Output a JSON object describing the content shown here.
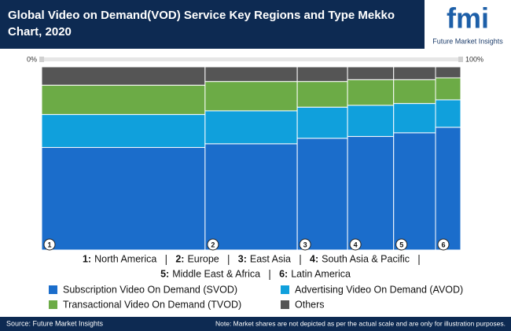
{
  "header": {
    "title": "Global Video on Demand(VOD) Service Key Regions and Type Mekko Chart, 2020",
    "logo": {
      "mark": "fmi",
      "text": "Future Market Insights"
    }
  },
  "chart_data": {
    "type": "mekko",
    "categories": [
      "North America",
      "Europe",
      "East Asia",
      "South Asia & Pacific",
      "Middle East & Africa",
      "Latin America"
    ],
    "category_ids": [
      "1",
      "2",
      "3",
      "4",
      "5",
      "6"
    ],
    "category_keys": [
      "1:",
      "2:",
      "3:",
      "4:",
      "5:",
      "6:"
    ],
    "widths": [
      39,
      22,
      12,
      11,
      10,
      6
    ],
    "xlim": [
      0,
      100
    ],
    "xticks": [
      {
        "value": 0,
        "label": "0%"
      },
      {
        "value": 100,
        "label": "100%"
      }
    ],
    "ylim": [
      0,
      100
    ],
    "series": [
      {
        "name": "Subscription Video On Demand (SVOD)",
        "color": "#1b6dcb",
        "values": [
          56,
          58,
          61,
          62,
          64,
          67
        ]
      },
      {
        "name": "Advertising Video On Demand (AVOD)",
        "color": "#10a0dc",
        "values": [
          18,
          18,
          17,
          17,
          16,
          15
        ]
      },
      {
        "name": "Transactional Video On Demand (TVOD)",
        "color": "#6cab46",
        "values": [
          16,
          16,
          14,
          14,
          13,
          12
        ]
      },
      {
        "name": "Others",
        "color": "#555555",
        "values": [
          10,
          8,
          8,
          7,
          7,
          6
        ]
      }
    ]
  },
  "footer": {
    "source": "Source: Future Market Insights",
    "note": "Note: Market shares are not depicted as per the actual scale and are only for illustration purposes."
  }
}
